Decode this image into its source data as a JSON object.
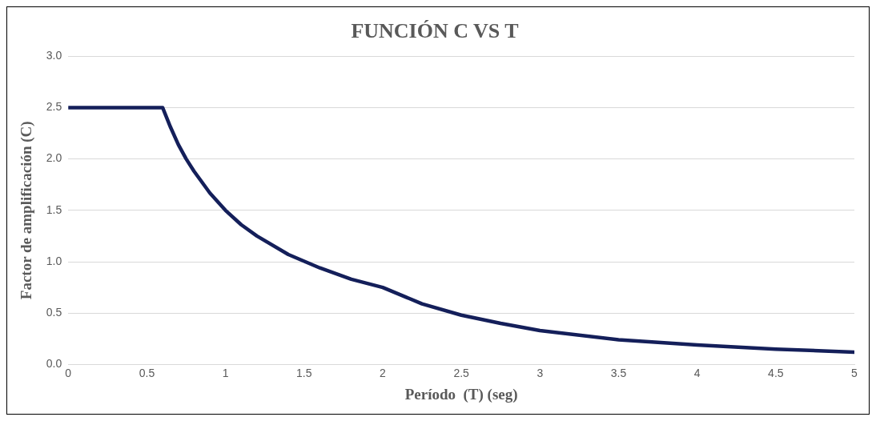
{
  "chart_data": {
    "type": "line",
    "title": "FUNCIÓN C VS T",
    "xlabel": "Período  (T) (seg)",
    "ylabel": "Factor de amplificación (C)",
    "series": [
      {
        "color": "#141f5a",
        "x": [
          0,
          0.6,
          0.65,
          0.7,
          0.75,
          0.8,
          0.9,
          1,
          1.1,
          1.2,
          1.4,
          1.6,
          1.8,
          2,
          2.25,
          2.5,
          2.75,
          3,
          3.5,
          4,
          4.5,
          5
        ],
        "values": [
          2.5,
          2.5,
          2.31,
          2.14,
          2,
          1.88,
          1.67,
          1.5,
          1.36,
          1.25,
          1.07,
          0.94,
          0.83,
          0.75,
          0.59,
          0.48,
          0.4,
          0.33,
          0.24,
          0.19,
          0.15,
          0.12
        ]
      }
    ],
    "xlim": [
      0,
      5
    ],
    "xticks": [
      0,
      0.5,
      1,
      1.5,
      2,
      2.5,
      3,
      3.5,
      4,
      4.5,
      5
    ],
    "ylim": [
      0,
      3
    ],
    "yticks": [
      {
        "value": 0,
        "label": "0.0"
      },
      {
        "value": 0.5,
        "label": "0.5"
      },
      {
        "value": 1,
        "label": "1.0"
      },
      {
        "value": 1.5,
        "label": "1.5"
      },
      {
        "value": 2,
        "label": "2.0"
      },
      {
        "value": 2.5,
        "label": "2.5"
      },
      {
        "value": 3,
        "label": "3.0"
      }
    ],
    "grid": "y",
    "legend": false,
    "marker": "none",
    "line_style": "solid"
  }
}
